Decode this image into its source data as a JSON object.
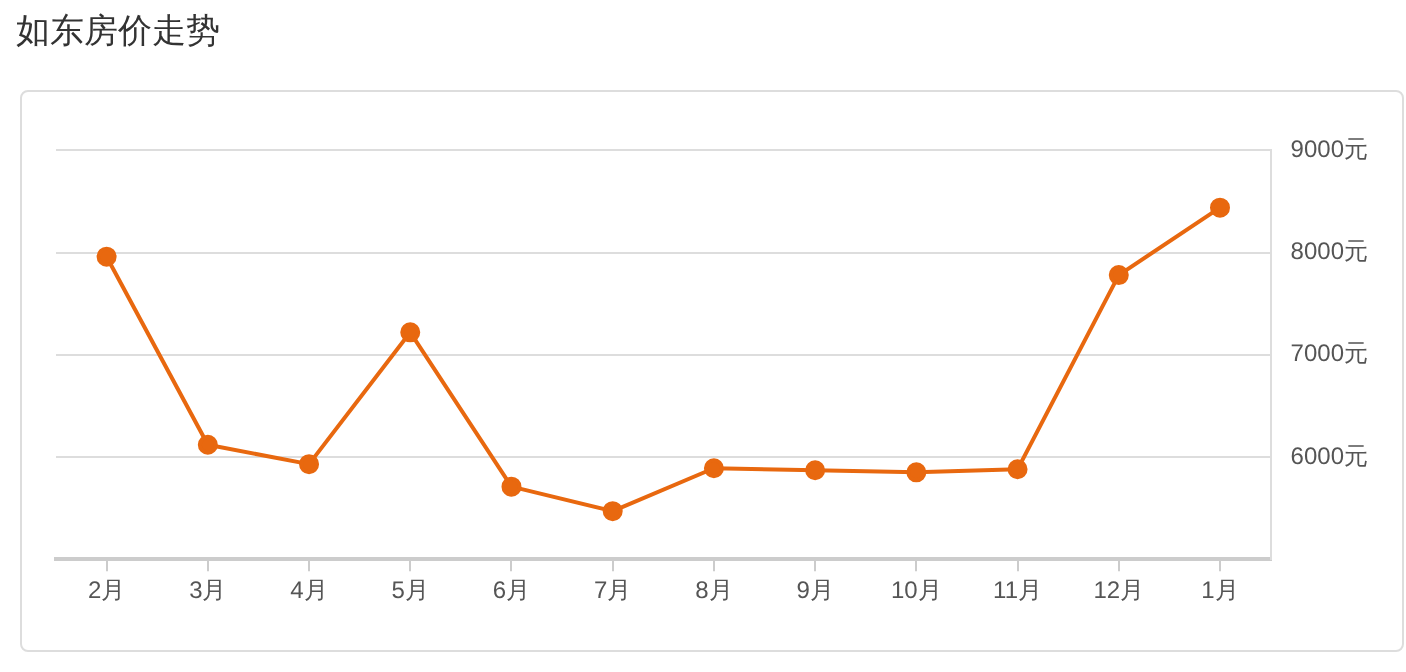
{
  "chart_data": {
    "type": "line",
    "title": "如东房价走势",
    "categories": [
      "2月",
      "3月",
      "4月",
      "5月",
      "6月",
      "7月",
      "8月",
      "9月",
      "10月",
      "11月",
      "12月",
      "1月"
    ],
    "series": [
      {
        "color": "#e8680f",
        "values": [
          7960,
          6120,
          5930,
          7220,
          5710,
          5470,
          5890,
          5870,
          5850,
          5880,
          7780,
          8440
        ]
      }
    ],
    "ylim": [
      5000,
      9000
    ],
    "yticks": [
      {
        "value": 6000,
        "label": "6000元"
      },
      {
        "value": 7000,
        "label": "7000元"
      },
      {
        "value": 8000,
        "label": "8000元"
      },
      {
        "value": 9000,
        "label": "9000元"
      }
    ],
    "grid": "y",
    "legend": false,
    "marker": "circle",
    "line_style": "solid"
  }
}
